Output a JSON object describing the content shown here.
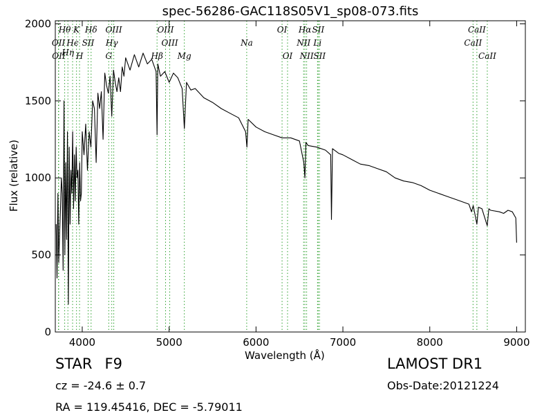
{
  "chart_data": {
    "type": "line",
    "title": "spec-56286-GAC118S05V1_sp08-073.fits",
    "xlabel": "Wavelength (Å)",
    "ylabel": "Flux (relative)",
    "xlim": [
      3690,
      9100
    ],
    "ylim": [
      0,
      2020
    ],
    "xticks": [
      4000,
      5000,
      6000,
      7000,
      8000,
      9000
    ],
    "yticks": [
      0,
      500,
      1000,
      1500,
      2000
    ],
    "grid": false,
    "series": [
      {
        "x": [
          3700,
          3710,
          3720,
          3730,
          3740,
          3750,
          3760,
          3770,
          3780,
          3790,
          3800,
          3810,
          3820,
          3830,
          3840,
          3850,
          3860,
          3870,
          3880,
          3890,
          3900,
          3910,
          3920,
          3930,
          3940,
          3950,
          3960,
          3970,
          3980,
          3990,
          4000,
          4020,
          4040,
          4060,
          4080,
          4100,
          4120,
          4140,
          4160,
          4180,
          4200,
          4220,
          4240,
          4260,
          4280,
          4300,
          4320,
          4340,
          4360,
          4380,
          4400,
          4420,
          4440,
          4460,
          4480,
          4500,
          4550,
          4600,
          4650,
          4700,
          4750,
          4800,
          4850,
          4861,
          4870,
          4900,
          4950,
          5000,
          5050,
          5100,
          5150,
          5175,
          5200,
          5250,
          5300,
          5400,
          5500,
          5600,
          5700,
          5800,
          5880,
          5895,
          5910,
          6000,
          6100,
          6200,
          6300,
          6400,
          6500,
          6550,
          6563,
          6575,
          6600,
          6700,
          6800,
          6860,
          6868,
          6880,
          6950,
          7000,
          7100,
          7200,
          7300,
          7400,
          7500,
          7600,
          7700,
          7800,
          7900,
          8000,
          8100,
          8200,
          8300,
          8400,
          8450,
          8480,
          8500,
          8542,
          8560,
          8600,
          8662,
          8680,
          8700,
          8800,
          8850,
          8900,
          8950,
          8990,
          9000
        ],
        "y": [
          700,
          350,
          900,
          450,
          650,
          800,
          1000,
          900,
          400,
          1500,
          500,
          1100,
          600,
          1300,
          180,
          1200,
          700,
          1050,
          900,
          1300,
          800,
          1150,
          850,
          1200,
          1000,
          1050,
          700,
          1100,
          850,
          900,
          1300,
          1150,
          1350,
          1050,
          1300,
          1200,
          1500,
          1450,
          1100,
          1550,
          1450,
          1560,
          1250,
          1680,
          1600,
          1550,
          1660,
          1400,
          1700,
          1620,
          1560,
          1650,
          1560,
          1720,
          1660,
          1780,
          1700,
          1800,
          1720,
          1810,
          1740,
          1770,
          1690,
          1280,
          1740,
          1660,
          1690,
          1620,
          1680,
          1650,
          1580,
          1320,
          1620,
          1570,
          1580,
          1520,
          1490,
          1450,
          1420,
          1390,
          1300,
          1200,
          1380,
          1330,
          1300,
          1280,
          1260,
          1260,
          1240,
          1100,
          1000,
          1230,
          1210,
          1200,
          1180,
          1150,
          730,
          1190,
          1160,
          1150,
          1120,
          1090,
          1080,
          1060,
          1040,
          1000,
          980,
          970,
          950,
          920,
          900,
          880,
          860,
          840,
          830,
          780,
          820,
          700,
          810,
          800,
          690,
          800,
          790,
          780,
          770,
          790,
          780,
          740,
          580
        ]
      }
    ],
    "line_annotations": [
      {
        "label": "Hθ",
        "x": 3798,
        "row": 0
      },
      {
        "label": "K",
        "x": 3934,
        "row": 0
      },
      {
        "label": "Hδ",
        "x": 4102,
        "row": 0
      },
      {
        "label": "OIII",
        "x": 4363,
        "row": 0
      },
      {
        "label": "OIII",
        "x": 4959,
        "row": 0
      },
      {
        "label": "OI",
        "x": 6300,
        "row": 0
      },
      {
        "label": "Hα",
        "x": 6563,
        "row": 0
      },
      {
        "label": "SII",
        "x": 6716,
        "row": 0
      },
      {
        "label": "CaII",
        "x": 8542,
        "row": 0
      },
      {
        "label": "OII",
        "x": 3726,
        "row": 1
      },
      {
        "label": "Hϵ",
        "x": 3889,
        "row": 1
      },
      {
        "label": "SII",
        "x": 4068,
        "row": 1
      },
      {
        "label": "Hγ",
        "x": 4340,
        "row": 1
      },
      {
        "label": "OIII",
        "x": 5007,
        "row": 1
      },
      {
        "label": "Na",
        "x": 5893,
        "row": 1
      },
      {
        "label": "NII",
        "x": 6548,
        "row": 1
      },
      {
        "label": "Li",
        "x": 6708,
        "row": 1
      },
      {
        "label": "CaII",
        "x": 8498,
        "row": 1
      },
      {
        "label": "Hη",
        "x": 3835,
        "row": 1.5
      },
      {
        "label": "OII",
        "x": 3729,
        "row": 2
      },
      {
        "label": "H",
        "x": 3969,
        "row": 2
      },
      {
        "label": "G",
        "x": 4305,
        "row": 2
      },
      {
        "label": "Hβ",
        "x": 4861,
        "row": 2
      },
      {
        "label": "Mg",
        "x": 5175,
        "row": 2
      },
      {
        "label": "OI",
        "x": 6363,
        "row": 2
      },
      {
        "label": "NII",
        "x": 6583,
        "row": 2
      },
      {
        "label": "SII",
        "x": 6731,
        "row": 2
      },
      {
        "label": "CaII",
        "x": 8662,
        "row": 2
      }
    ]
  },
  "info": {
    "class_label": "STAR",
    "subclass": "F9",
    "cz": "cz = -24.6 ± 0.7",
    "coords": "RA = 119.45416, DEC = -5.79011",
    "survey": "LAMOST DR1",
    "obs_date": "Obs-Date:20121224"
  },
  "colors": {
    "spectrum": "#000000",
    "emission_lines": "#2ca02c",
    "axes": "#000000"
  }
}
